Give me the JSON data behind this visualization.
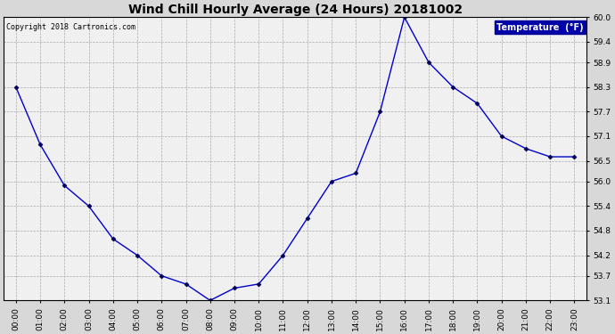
{
  "title": "Wind Chill Hourly Average (24 Hours) 20181002",
  "copyright": "Copyright 2018 Cartronics.com",
  "legend_label": "Temperature  (°F)",
  "hours": [
    "00:00",
    "01:00",
    "02:00",
    "03:00",
    "04:00",
    "05:00",
    "06:00",
    "07:00",
    "08:00",
    "09:00",
    "10:00",
    "11:00",
    "12:00",
    "13:00",
    "14:00",
    "15:00",
    "16:00",
    "17:00",
    "18:00",
    "19:00",
    "20:00",
    "21:00",
    "22:00",
    "23:00"
  ],
  "values": [
    58.3,
    56.9,
    55.9,
    55.4,
    54.6,
    54.2,
    53.7,
    53.5,
    53.1,
    53.4,
    53.5,
    54.2,
    55.1,
    56.0,
    56.2,
    57.7,
    60.0,
    58.9,
    58.3,
    57.9,
    57.1,
    56.8,
    56.6,
    56.6
  ],
  "ylim": [
    53.1,
    60.0
  ],
  "yticks": [
    53.1,
    53.7,
    54.2,
    54.8,
    55.4,
    56.0,
    56.5,
    57.1,
    57.7,
    58.3,
    58.9,
    59.4,
    60.0
  ],
  "line_color": "#0000cc",
  "marker_color": "#000055",
  "bg_color": "#d8d8d8",
  "plot_bg_color": "#f0f0f0",
  "grid_color": "#aaaaaa",
  "title_color": "#000000",
  "copyright_color": "#000000",
  "legend_bg_color": "#0000aa",
  "legend_text_color": "#ffffff",
  "title_fontsize": 10,
  "copyright_fontsize": 6,
  "tick_fontsize": 6.5,
  "legend_fontsize": 7
}
